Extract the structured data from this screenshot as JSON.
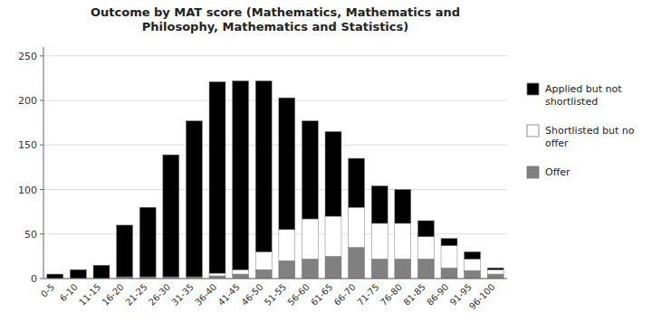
{
  "chart_data": {
    "type": "bar",
    "stacked": true,
    "title": "Outcome by MAT score (Mathematics, Mathematics and\nPhilosophy, Mathematics and Statistics)",
    "categories": [
      "0-5",
      "6-10",
      "11-15",
      "16-20",
      "21-25",
      "26-30",
      "31-35",
      "36-40",
      "41-45",
      "46-50",
      "51-55",
      "56-60",
      "61-65",
      "66-70",
      "71-75",
      "76-80",
      "81-85",
      "86-90",
      "91-95",
      "96-100"
    ],
    "series": [
      {
        "name": "Offer",
        "color": "#808080",
        "values": [
          0,
          0,
          0,
          2,
          2,
          2,
          2,
          3,
          5,
          10,
          20,
          22,
          25,
          35,
          22,
          22,
          22,
          12,
          9,
          5
        ]
      },
      {
        "name": "Shortlisted but no\noffer",
        "color": "#ffffff",
        "values": [
          0,
          0,
          0,
          0,
          0,
          0,
          0,
          3,
          5,
          20,
          35,
          45,
          45,
          45,
          40,
          40,
          25,
          25,
          13,
          5
        ]
      },
      {
        "name": "Applied but not\nshortlisted",
        "color": "#000000",
        "values": [
          5,
          10,
          15,
          58,
          78,
          137,
          175,
          215,
          212,
          192,
          148,
          110,
          95,
          55,
          42,
          38,
          18,
          8,
          8,
          2
        ]
      }
    ],
    "ylim": [
      0,
      260
    ],
    "yticks": [
      0,
      50,
      100,
      150,
      200,
      250
    ],
    "grid": true,
    "legend": "right"
  }
}
